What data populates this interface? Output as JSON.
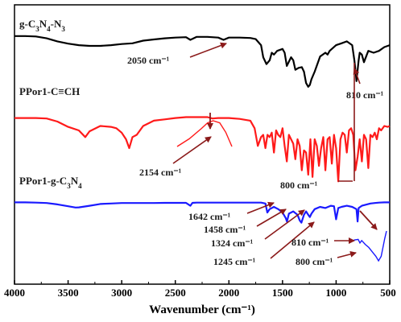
{
  "chart_data": {
    "type": "line",
    "title": "",
    "xlabel": "Wavenumber (cm⁻¹)",
    "ylabel": "",
    "xlim": [
      4000,
      500
    ],
    "x_reversed": true,
    "x_ticks": [
      "4000",
      "3500",
      "3000",
      "2500",
      "2000",
      "1500",
      "1000",
      "500"
    ],
    "colors": {
      "g_c3n4_n3": "#000000",
      "ppor1_c_ch": "#ff1a1a",
      "ppor1_g_c3n4": "#1a1aff",
      "annotation": "#8b1a1a"
    },
    "series": [
      {
        "name": "g-C3N4-N3",
        "label_parts": [
          [
            "g-C",
            ""
          ],
          [
            "3",
            "sub"
          ],
          [
            "N",
            ""
          ],
          [
            "4",
            "sub"
          ],
          [
            "-N",
            ""
          ],
          [
            "3",
            "sub"
          ]
        ],
        "key": "g_c3n4_n3",
        "x": [
          4000,
          3900,
          3800,
          3700,
          3600,
          3500,
          3400,
          3300,
          3200,
          3100,
          3000,
          2900,
          2800,
          2700,
          2600,
          2500,
          2400,
          2360,
          2300,
          2200,
          2100,
          2050,
          2000,
          1900,
          1800,
          1750,
          1700,
          1680,
          1650,
          1620,
          1600,
          1580,
          1550,
          1500,
          1480,
          1460,
          1420,
          1400,
          1380,
          1350,
          1320,
          1300,
          1280,
          1260,
          1245,
          1230,
          1200,
          1150,
          1100,
          1080,
          1060,
          1000,
          950,
          900,
          850,
          830,
          815,
          810,
          805,
          790,
          780,
          760,
          740,
          720,
          700,
          650,
          600,
          550,
          500
        ],
        "y": [
          0.06,
          0.06,
          0.07,
          0.12,
          0.2,
          0.26,
          0.3,
          0.32,
          0.32,
          0.3,
          0.27,
          0.25,
          0.18,
          0.15,
          0.12,
          0.1,
          0.09,
          0.16,
          0.08,
          0.08,
          0.1,
          0.16,
          0.1,
          0.1,
          0.11,
          0.14,
          0.3,
          0.62,
          0.8,
          0.7,
          0.5,
          0.55,
          0.45,
          0.4,
          0.5,
          0.85,
          0.62,
          0.7,
          0.95,
          0.9,
          0.88,
          1.0,
          1.3,
          1.4,
          1.35,
          1.2,
          1.0,
          0.6,
          0.5,
          0.55,
          0.45,
          0.3,
          0.25,
          0.2,
          0.3,
          0.7,
          1.1,
          1.25,
          1.1,
          0.7,
          0.5,
          0.55,
          0.75,
          0.6,
          0.45,
          0.5,
          0.45,
          0.35,
          0.3
        ]
      },
      {
        "name": "PPor1-C≡CH",
        "label_parts": [
          [
            "PPor1-C≡CH",
            ""
          ]
        ],
        "key": "ppor1_c_ch",
        "x": [
          4000,
          3900,
          3800,
          3700,
          3600,
          3500,
          3400,
          3340,
          3300,
          3200,
          3100,
          3050,
          3000,
          2960,
          2930,
          2900,
          2860,
          2800,
          2700,
          2600,
          2500,
          2400,
          2300,
          2200,
          2154,
          2100,
          2000,
          1900,
          1800,
          1760,
          1730,
          1700,
          1680,
          1660,
          1640,
          1620,
          1600,
          1580,
          1560,
          1540,
          1520,
          1500,
          1480,
          1460,
          1440,
          1420,
          1400,
          1380,
          1360,
          1340,
          1320,
          1300,
          1280,
          1260,
          1240,
          1220,
          1200,
          1180,
          1160,
          1140,
          1120,
          1100,
          1080,
          1060,
          1040,
          1020,
          1000,
          980,
          960,
          940,
          920,
          900,
          880,
          860,
          840,
          820,
          800,
          780,
          760,
          740,
          720,
          700,
          680,
          660,
          640,
          620,
          600,
          580,
          550,
          520,
          500
        ],
        "y": [
          0.12,
          0.12,
          0.12,
          0.13,
          0.2,
          0.32,
          0.4,
          0.55,
          0.42,
          0.3,
          0.32,
          0.35,
          0.45,
          0.6,
          0.8,
          0.55,
          0.5,
          0.3,
          0.18,
          0.15,
          0.12,
          0.1,
          0.1,
          0.1,
          0.13,
          0.12,
          0.12,
          0.14,
          0.18,
          0.35,
          0.75,
          0.55,
          0.5,
          0.8,
          0.5,
          0.55,
          0.45,
          0.9,
          0.4,
          0.5,
          0.55,
          0.35,
          0.75,
          1.1,
          0.5,
          0.6,
          0.7,
          1.05,
          0.6,
          0.75,
          1.3,
          0.85,
          0.9,
          1.4,
          0.6,
          1.45,
          0.6,
          0.75,
          1.2,
          0.8,
          0.55,
          1.3,
          0.6,
          0.55,
          1.15,
          0.5,
          0.8,
          1.55,
          0.6,
          0.45,
          0.5,
          0.9,
          0.4,
          0.35,
          0.5,
          1.3,
          1.0,
          0.6,
          1.1,
          0.5,
          0.6,
          1.25,
          0.5,
          0.55,
          0.45,
          0.6,
          0.35,
          0.4,
          0.3,
          0.32,
          0.3
        ]
      },
      {
        "name": "PPor1-g-C3N4",
        "label_parts": [
          [
            "PPor1-g-C",
            ""
          ],
          [
            "3",
            "sub"
          ],
          [
            "N",
            ""
          ],
          [
            "4",
            "sub"
          ]
        ],
        "key": "ppor1_g_c3n4",
        "x": [
          4000,
          3900,
          3800,
          3700,
          3600,
          3500,
          3430,
          3400,
          3300,
          3200,
          3100,
          3000,
          2900,
          2800,
          2700,
          2600,
          2500,
          2400,
          2360,
          2340,
          2300,
          2200,
          2100,
          2000,
          1900,
          1800,
          1700,
          1660,
          1642,
          1620,
          1580,
          1540,
          1500,
          1470,
          1458,
          1440,
          1400,
          1360,
          1340,
          1324,
          1300,
          1280,
          1260,
          1245,
          1230,
          1200,
          1150,
          1100,
          1050,
          1020,
          1000,
          980,
          950,
          900,
          850,
          810,
          800,
          790,
          760,
          720,
          680,
          640,
          600,
          550,
          500
        ],
        "y": [
          0.05,
          0.05,
          0.06,
          0.08,
          0.14,
          0.22,
          0.28,
          0.27,
          0.2,
          0.12,
          0.1,
          0.08,
          0.08,
          0.08,
          0.08,
          0.07,
          0.07,
          0.07,
          0.2,
          0.07,
          0.06,
          0.06,
          0.06,
          0.06,
          0.06,
          0.06,
          0.06,
          0.1,
          0.5,
          0.35,
          0.25,
          0.35,
          0.5,
          0.75,
          0.9,
          0.55,
          0.45,
          0.6,
          0.85,
          0.95,
          0.6,
          0.45,
          0.6,
          0.7,
          0.55,
          0.35,
          0.25,
          0.3,
          0.2,
          0.22,
          0.8,
          0.3,
          0.25,
          0.2,
          0.25,
          0.35,
          0.9,
          0.3,
          0.2,
          0.15,
          0.1,
          0.08,
          0.06,
          0.05,
          0.05
        ]
      }
    ],
    "inset_curves": [
      {
        "series_key": "ppor1_c_ch",
        "x": [
          2450,
          2350,
          2250,
          2200,
          2154,
          2100,
          2050,
          2000
        ],
        "y": [
          1.0,
          0.7,
          0.3,
          0.08,
          0.0,
          0.08,
          0.45,
          1.0
        ]
      },
      {
        "series_key": "ppor1_g_c3n4",
        "x": [
          740,
          720,
          700,
          690,
          680,
          660,
          640,
          620,
          600,
          585,
          570,
          560,
          550,
          540
        ],
        "y": [
          0.35,
          0.3,
          0.28,
          0.4,
          0.32,
          0.45,
          0.55,
          0.7,
          0.85,
          1.0,
          0.85,
          0.55,
          0.25,
          0.0
        ]
      }
    ],
    "annotations": [
      {
        "text": "2050 cm⁻¹"
      },
      {
        "text": "810 cm⁻¹"
      },
      {
        "text": "2154 cm⁻¹"
      },
      {
        "text": "800 cm⁻¹"
      },
      {
        "text": "1642 cm⁻¹"
      },
      {
        "text": "1458 cm⁻¹"
      },
      {
        "text": "1324 cm⁻¹"
      },
      {
        "text": "1245 cm⁻¹"
      },
      {
        "text": "810 cm⁻¹"
      },
      {
        "text": "800 cm⁻¹"
      }
    ]
  }
}
